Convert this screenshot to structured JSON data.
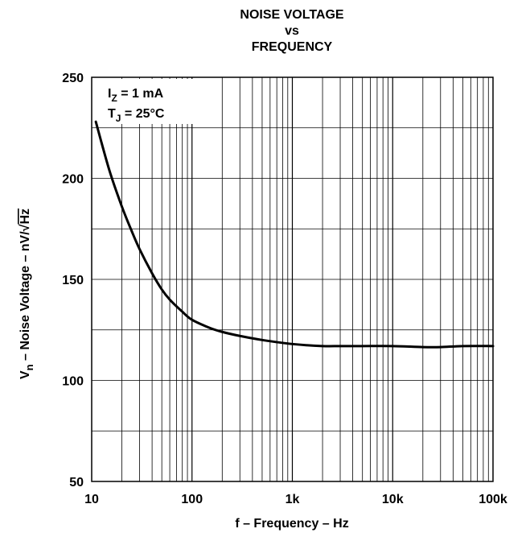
{
  "chart_data": {
    "type": "line",
    "title_lines": [
      "NOISE VOLTAGE",
      "vs",
      "FREQUENCY"
    ],
    "xlabel": "f – Frequency – Hz",
    "ylabel": {
      "main": "V",
      "sub": "n",
      "rest": " – Noise Voltage – nV/",
      "root": "√",
      "root_arg": "Hz"
    },
    "x_scale": "log",
    "xlim": [
      10,
      100000
    ],
    "ylim": [
      50,
      250
    ],
    "grid": true,
    "xticks": [
      10,
      100,
      1000,
      10000,
      100000
    ],
    "xtick_labels": [
      "10",
      "100",
      "1k",
      "10k",
      "100k"
    ],
    "yticks": [
      50,
      100,
      150,
      200,
      250
    ],
    "ytick_labels": [
      "50",
      "100",
      "150",
      "200",
      "250"
    ],
    "annotations": [
      {
        "main": "I",
        "sub": "Z",
        "rest": " = 1 mA"
      },
      {
        "main": "T",
        "sub": "J",
        "rest": " = 25°C"
      }
    ],
    "series": [
      {
        "x": [
          11,
          15,
          20,
          25,
          30,
          40,
          50,
          60,
          80,
          100,
          150,
          200,
          300,
          500,
          1000,
          2000,
          3000,
          5000,
          10000,
          20000,
          30000,
          50000,
          100000
        ],
        "y": [
          228,
          204,
          186,
          174,
          165,
          153,
          145,
          140,
          134,
          130,
          126,
          124,
          122,
          120,
          118,
          117,
          117,
          117,
          117,
          116.5,
          116.5,
          117,
          117
        ]
      }
    ]
  }
}
